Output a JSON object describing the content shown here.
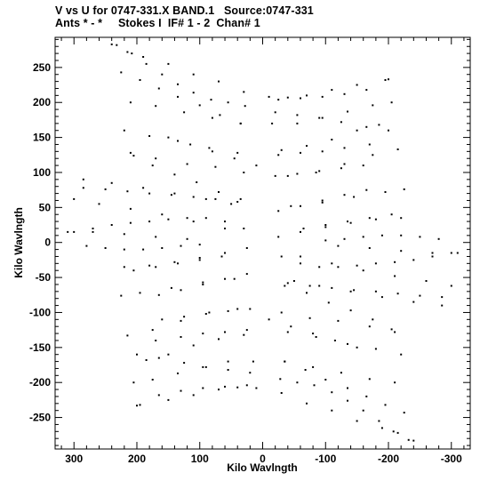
{
  "header": {
    "line1": "V vs U for 0747-331.X BAND.1   Source:0747-331",
    "line2": "Ants * - *     Stokes I  IF# 1 - 2  Chan# 1"
  },
  "chart_data": {
    "type": "scatter",
    "xlabel": "Kilo Wavlngth",
    "ylabel": "Kilo Wavlngth",
    "xlim": [
      330,
      -330
    ],
    "ylim": [
      -295,
      293
    ],
    "x_reversed": true,
    "xticks": [
      300,
      200,
      100,
      0,
      -100,
      -200,
      -300
    ],
    "yticks": [
      250,
      200,
      150,
      100,
      50,
      0,
      -50,
      -100,
      -150,
      -200,
      -250
    ],
    "xtick_labels": [
      "300",
      "200",
      "100",
      "0",
      "-100",
      "-200",
      "-300"
    ],
    "ytick_labels": [
      "250",
      "200",
      "150",
      "100",
      "50",
      "0",
      "-50",
      "-100",
      "-150",
      "-200",
      "-250"
    ],
    "grid": false,
    "marker_color": "#000000",
    "series": [
      {
        "points": [
          [
            232,
            282
          ],
          [
            208,
            270
          ],
          [
            185,
            255
          ],
          [
            160,
            240
          ],
          [
            135,
            226
          ],
          [
            110,
            214
          ],
          [
            82,
            204
          ],
          [
            55,
            200
          ],
          [
            28,
            195
          ],
          [
            -10,
            208
          ],
          [
            -40,
            207
          ],
          [
            -70,
            210
          ],
          [
            -110,
            218
          ],
          [
            -150,
            225
          ],
          [
            -200,
            233
          ],
          [
            225,
            243
          ],
          [
            195,
            232
          ],
          [
            165,
            220
          ],
          [
            135,
            208
          ],
          [
            100,
            196
          ],
          [
            68,
            182
          ],
          [
            35,
            170
          ],
          [
            -15,
            170
          ],
          [
            -55,
            170
          ],
          [
            -95,
            178
          ],
          [
            -135,
            187
          ],
          [
            -175,
            196
          ],
          [
            -205,
            200
          ],
          [
            150,
            150
          ],
          [
            115,
            140
          ],
          [
            80,
            130
          ],
          [
            45,
            120
          ],
          [
            10,
            110
          ],
          [
            -30,
            132
          ],
          [
            -70,
            138
          ],
          [
            -110,
            147
          ],
          [
            -150,
            160
          ],
          [
            -185,
            168
          ],
          [
            205,
            124
          ],
          [
            175,
            110
          ],
          [
            140,
            97
          ],
          [
            105,
            86
          ],
          [
            70,
            72
          ],
          [
            35,
            62
          ],
          [
            -40,
            95
          ],
          [
            -85,
            100
          ],
          [
            -130,
            112
          ],
          [
            -175,
            125
          ],
          [
            -215,
            133
          ],
          [
            285,
            78
          ],
          [
            250,
            76
          ],
          [
            215,
            73
          ],
          [
            180,
            70
          ],
          [
            145,
            68
          ],
          [
            110,
            65
          ],
          [
            75,
            62
          ],
          [
            40,
            58
          ],
          [
            -45,
            52
          ],
          [
            -95,
            57
          ],
          [
            -145,
            65
          ],
          [
            -195,
            72
          ],
          [
            -225,
            76
          ],
          [
            300,
            15
          ],
          [
            270,
            20
          ],
          [
            240,
            25
          ],
          [
            210,
            28
          ],
          [
            180,
            30
          ],
          [
            150,
            33
          ],
          [
            120,
            35
          ],
          [
            90,
            35
          ],
          [
            60,
            30
          ],
          [
            30,
            20
          ],
          [
            -25,
            8
          ],
          [
            -60,
            15
          ],
          [
            -100,
            22
          ],
          [
            -140,
            28
          ],
          [
            -180,
            33
          ],
          [
            -220,
            35
          ],
          [
            280,
            -5
          ],
          [
            250,
            -8
          ],
          [
            220,
            -10
          ],
          [
            190,
            -10
          ],
          [
            160,
            -8
          ],
          [
            130,
            -5
          ],
          [
            100,
            -3
          ],
          [
            -120,
            -5
          ],
          [
            -170,
            -8
          ],
          [
            -220,
            -12
          ],
          [
            -270,
            -15
          ],
          [
            -310,
            -15
          ],
          [
            205,
            -40
          ],
          [
            170,
            -35
          ],
          [
            135,
            -30
          ],
          [
            100,
            -25
          ],
          [
            65,
            -20
          ],
          [
            -60,
            -20
          ],
          [
            -110,
            -30
          ],
          [
            -160,
            -40
          ],
          [
            -210,
            -48
          ],
          [
            -260,
            -55
          ],
          [
            -300,
            -62
          ],
          [
            165,
            -75
          ],
          [
            130,
            -68
          ],
          [
            95,
            -60
          ],
          [
            60,
            -52
          ],
          [
            25,
            -45
          ],
          [
            -50,
            -55
          ],
          [
            -90,
            -62
          ],
          [
            -140,
            -70
          ],
          [
            -190,
            -78
          ],
          [
            -240,
            -85
          ],
          [
            -285,
            -90
          ],
          [
            160,
            -110
          ],
          [
            125,
            -106
          ],
          [
            90,
            -102
          ],
          [
            55,
            -98
          ],
          [
            20,
            -95
          ],
          [
            -30,
            -100
          ],
          [
            -75,
            -108
          ],
          [
            -120,
            -112
          ],
          [
            -170,
            -120
          ],
          [
            -210,
            -128
          ],
          [
            170,
            -140
          ],
          [
            130,
            -135
          ],
          [
            95,
            -130
          ],
          [
            60,
            -128
          ],
          [
            25,
            -125
          ],
          [
            -40,
            -128
          ],
          [
            -85,
            -135
          ],
          [
            -135,
            -145
          ],
          [
            -180,
            -152
          ],
          [
            -220,
            -160
          ],
          [
            200,
            -160
          ],
          [
            165,
            -165
          ],
          [
            125,
            -172
          ],
          [
            90,
            -178
          ],
          [
            55,
            -182
          ],
          [
            20,
            -186
          ],
          [
            -35,
            -170
          ],
          [
            -80,
            -178
          ],
          [
            -125,
            -186
          ],
          [
            -170,
            -195
          ],
          [
            -210,
            -200
          ],
          [
            195,
            -232
          ],
          [
            165,
            -218
          ],
          [
            130,
            -212
          ],
          [
            95,
            -208
          ],
          [
            60,
            -206
          ],
          [
            25,
            -204
          ],
          [
            -30,
            -215
          ],
          [
            -70,
            -230
          ],
          [
            -110,
            -240
          ],
          [
            -150,
            -255
          ],
          [
            -190,
            -265
          ],
          [
            -215,
            -272
          ],
          [
            -240,
            -283
          ]
        ]
      }
    ]
  }
}
